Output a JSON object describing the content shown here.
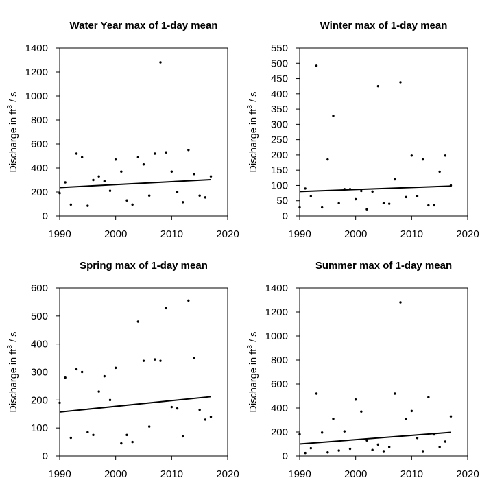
{
  "chart_data": [
    {
      "type": "scatter",
      "title": "Water Year max of 1-day mean",
      "ylabel": "Discharge in ft^3 / s",
      "ylabel_main": "Discharge in ft",
      "ylabel_sup": "3",
      "ylabel_tail": " / s",
      "xlim": [
        1990,
        2020
      ],
      "ylim": [
        0,
        1400
      ],
      "xticks": [
        1990,
        2000,
        2010,
        2020
      ],
      "yticks": [
        0,
        200,
        400,
        600,
        800,
        1000,
        1200,
        1400
      ],
      "grid": false,
      "series": [
        {
          "x": [
            1990,
            1991,
            1992,
            1993,
            1994,
            1995,
            1996,
            1997,
            1998,
            1999,
            2000,
            2001,
            2002,
            2003,
            2004,
            2005,
            2006,
            2007,
            2008,
            2009,
            2010,
            2011,
            2012,
            2013,
            2014,
            2015,
            2016,
            2017
          ],
          "y": [
            190,
            280,
            95,
            520,
            490,
            85,
            300,
            330,
            290,
            210,
            470,
            370,
            130,
            95,
            490,
            430,
            170,
            520,
            1280,
            530,
            370,
            200,
            115,
            550,
            350,
            170,
            155,
            330
          ]
        }
      ],
      "trend": {
        "x": [
          1990,
          2017
        ],
        "y": [
          237,
          303
        ]
      }
    },
    {
      "type": "scatter",
      "title": "Winter max of 1-day mean",
      "ylabel": "Discharge in ft^3 / s",
      "ylabel_main": "Discharge in ft",
      "ylabel_sup": "3",
      "ylabel_tail": " / s",
      "xlim": [
        1990,
        2020
      ],
      "ylim": [
        0,
        550
      ],
      "xticks": [
        1990,
        2000,
        2010,
        2020
      ],
      "yticks": [
        0,
        50,
        100,
        150,
        200,
        250,
        300,
        350,
        400,
        450,
        500,
        550
      ],
      "grid": false,
      "series": [
        {
          "x": [
            1990,
            1991,
            1992,
            1993,
            1994,
            1995,
            1996,
            1997,
            1998,
            1999,
            2000,
            2001,
            2002,
            2003,
            2004,
            2005,
            2006,
            2007,
            2008,
            2009,
            2010,
            2011,
            2012,
            2013,
            2014,
            2015,
            2016,
            2017
          ],
          "y": [
            28,
            90,
            65,
            492,
            28,
            185,
            328,
            42,
            88,
            88,
            55,
            82,
            22,
            80,
            425,
            42,
            40,
            120,
            438,
            62,
            198,
            65,
            185,
            35,
            35,
            145,
            198,
            100
          ]
        }
      ],
      "trend": {
        "x": [
          1990,
          2017
        ],
        "y": [
          80,
          98
        ]
      }
    },
    {
      "type": "scatter",
      "title": "Spring max of 1-day mean",
      "ylabel": "Discharge in ft^3 / s",
      "ylabel_main": "Discharge in ft",
      "ylabel_sup": "3",
      "ylabel_tail": " / s",
      "xlim": [
        1990,
        2020
      ],
      "ylim": [
        0,
        600
      ],
      "xticks": [
        1990,
        2000,
        2010,
        2020
      ],
      "yticks": [
        0,
        100,
        200,
        300,
        400,
        500,
        600
      ],
      "grid": false,
      "series": [
        {
          "x": [
            1990,
            1991,
            1992,
            1993,
            1994,
            1995,
            1996,
            1997,
            1998,
            1999,
            2000,
            2001,
            2002,
            2003,
            2004,
            2005,
            2006,
            2007,
            2008,
            2009,
            2010,
            2011,
            2012,
            2013,
            2014,
            2015,
            2016,
            2017
          ],
          "y": [
            190,
            280,
            65,
            310,
            300,
            85,
            75,
            230,
            285,
            200,
            315,
            45,
            75,
            50,
            480,
            340,
            105,
            345,
            340,
            528,
            175,
            170,
            70,
            555,
            350,
            165,
            130,
            140
          ]
        }
      ],
      "trend": {
        "x": [
          1990,
          2017
        ],
        "y": [
          157,
          212
        ]
      }
    },
    {
      "type": "scatter",
      "title": "Summer max of 1-day mean",
      "ylabel": "Discharge in ft^3 / s",
      "ylabel_main": "Discharge in ft",
      "ylabel_sup": "3",
      "ylabel_tail": " / s",
      "xlim": [
        1990,
        2020
      ],
      "ylim": [
        0,
        1400
      ],
      "xticks": [
        1990,
        2000,
        2010,
        2020
      ],
      "yticks": [
        0,
        200,
        400,
        600,
        800,
        1000,
        1200,
        1400
      ],
      "grid": false,
      "series": [
        {
          "x": [
            1990,
            1991,
            1992,
            1993,
            1994,
            1995,
            1996,
            1997,
            1998,
            1999,
            2000,
            2001,
            2002,
            2003,
            2004,
            2005,
            2006,
            2007,
            2008,
            2009,
            2010,
            2011,
            2012,
            2013,
            2014,
            2015,
            2016,
            2017
          ],
          "y": [
            180,
            25,
            65,
            520,
            195,
            30,
            310,
            45,
            205,
            60,
            470,
            370,
            130,
            50,
            95,
            40,
            75,
            520,
            1280,
            310,
            375,
            150,
            40,
            490,
            180,
            75,
            120,
            330
          ]
        }
      ],
      "trend": {
        "x": [
          1990,
          2017
        ],
        "y": [
          100,
          197
        ]
      }
    }
  ]
}
